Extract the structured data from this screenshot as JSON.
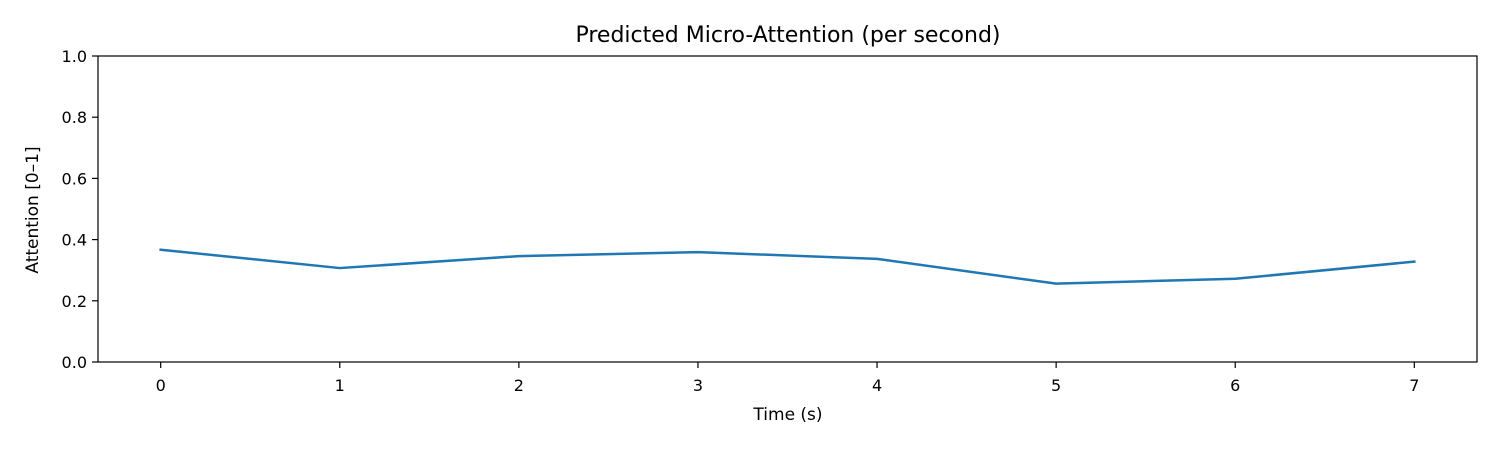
{
  "chart_data": {
    "type": "line",
    "title": "Predicted Micro-Attention (per second)",
    "xlabel": "Time (s)",
    "ylabel": "Attention [0–1]",
    "xlim": [
      -0.35,
      7.35
    ],
    "ylim": [
      0.0,
      1.0
    ],
    "xticks": [
      0,
      1,
      2,
      3,
      4,
      5,
      6,
      7
    ],
    "yticks": [
      0.0,
      0.2,
      0.4,
      0.6,
      0.8,
      1.0
    ],
    "ytick_labels": [
      "0.0",
      "0.2",
      "0.4",
      "0.6",
      "0.8",
      "1.0"
    ],
    "grid": false,
    "series": [
      {
        "color": "#1f77b4",
        "x": [
          0,
          1,
          2,
          3,
          4,
          5,
          6,
          7
        ],
        "y": [
          0.367,
          0.307,
          0.346,
          0.359,
          0.337,
          0.256,
          0.272,
          0.328
        ]
      }
    ]
  }
}
